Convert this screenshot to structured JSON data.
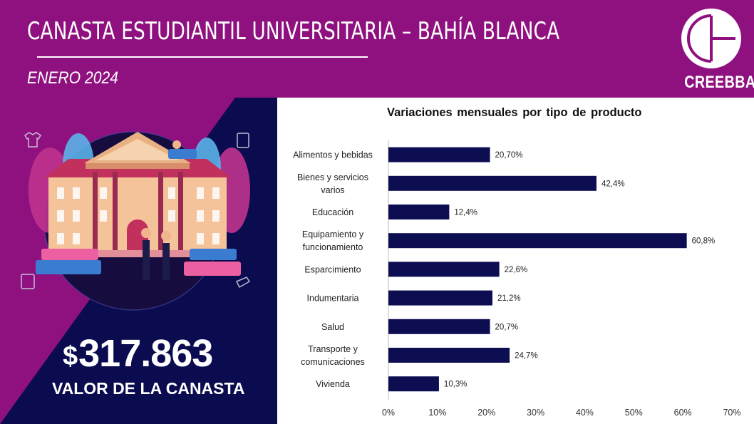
{
  "header": {
    "title": "CANASTA ESTUDIANTIL UNIVERSITARIA – BAHÍA BLANCA",
    "subtitle": "ENERO 2024",
    "logo_text": "CREEBBA"
  },
  "summary": {
    "currency": "$",
    "amount": "317.863",
    "label": "VALOR DE LA CANASTA"
  },
  "colors": {
    "brand_purple": "#8f117f",
    "navy": "#0b0b4f",
    "bar": "#0d0d52"
  },
  "chart_data": {
    "type": "bar",
    "orientation": "horizontal",
    "title": "Variaciones mensuales por tipo de producto",
    "categories": [
      [
        "Alimentos y bebidas"
      ],
      [
        "Bienes y servicios",
        "varios"
      ],
      [
        "Educación"
      ],
      [
        "Equipamiento y",
        "funcionamiento"
      ],
      [
        "Esparcimiento"
      ],
      [
        "Indumentaria"
      ],
      [
        "Salud"
      ],
      [
        "Transporte y",
        "comunicaciones"
      ],
      [
        "Vivienda"
      ]
    ],
    "values": [
      20.7,
      42.4,
      12.4,
      60.8,
      22.6,
      21.2,
      20.7,
      24.7,
      10.3
    ],
    "data_labels": [
      "20,70%",
      "42,4%",
      "12,4%",
      "60,8%",
      "22,6%",
      "21,2%",
      "20,7%",
      "24,7%",
      "10,3%"
    ],
    "xlim": [
      0,
      70
    ],
    "xticks": [
      0,
      10,
      20,
      30,
      40,
      50,
      60,
      70
    ],
    "xtick_labels": [
      "0%",
      "10%",
      "20%",
      "30%",
      "40%",
      "50%",
      "60%",
      "70%"
    ],
    "grid": false,
    "legend": "none"
  }
}
